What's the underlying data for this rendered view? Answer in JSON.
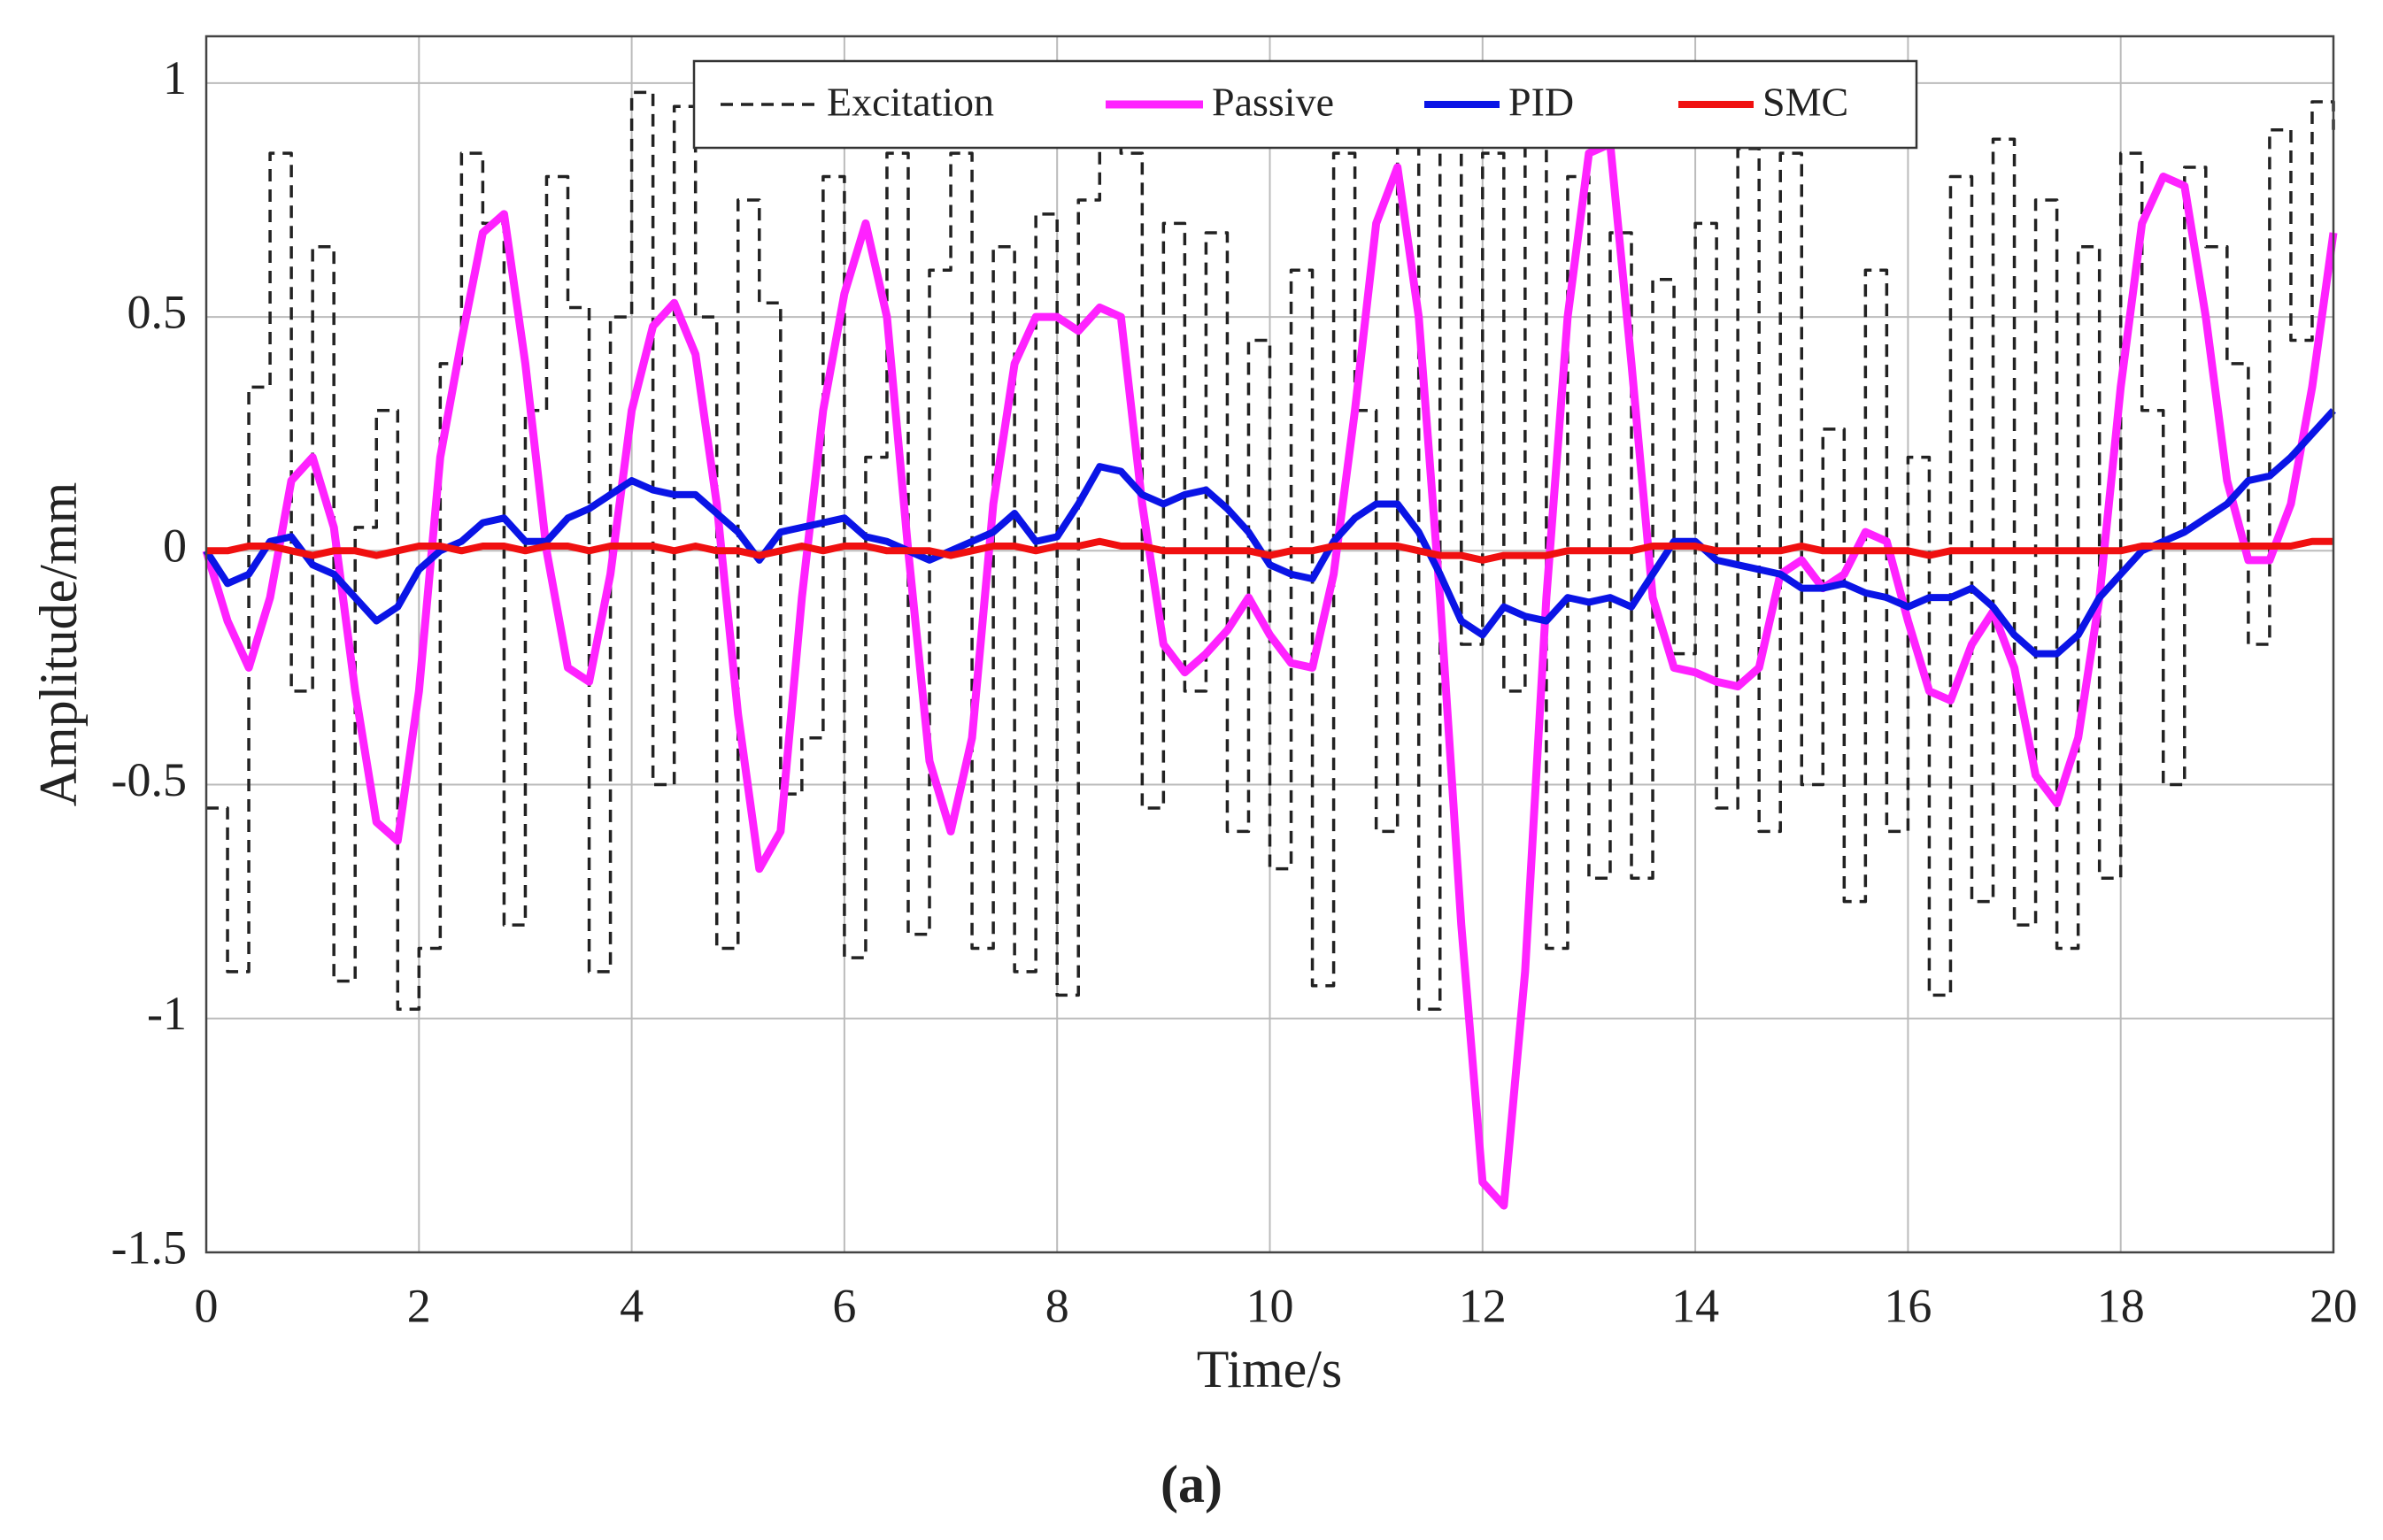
{
  "chart_data": {
    "type": "line",
    "xlabel": "Time/s",
    "ylabel": "Amplitude/mm",
    "caption": "(a)",
    "xlim": [
      0,
      20
    ],
    "ylim": [
      -1.5,
      1.1
    ],
    "xticks": [
      0,
      2,
      4,
      6,
      8,
      10,
      12,
      14,
      16,
      18,
      20
    ],
    "yticks": [
      -1.5,
      -1,
      -0.5,
      0,
      0.5,
      1
    ],
    "grid": true,
    "legend": "upper center",
    "x": [
      0,
      0.2,
      0.4,
      0.6,
      0.8,
      1,
      1.2,
      1.4,
      1.6,
      1.8,
      2,
      2.2,
      2.4,
      2.6,
      2.8,
      3,
      3.2,
      3.4,
      3.6,
      3.8,
      4,
      4.2,
      4.4,
      4.6,
      4.8,
      5,
      5.2,
      5.4,
      5.6,
      5.8,
      6,
      6.2,
      6.4,
      6.6,
      6.8,
      7,
      7.2,
      7.4,
      7.6,
      7.8,
      8,
      8.2,
      8.4,
      8.6,
      8.8,
      9,
      9.2,
      9.4,
      9.6,
      9.8,
      10,
      10.2,
      10.4,
      10.6,
      10.8,
      11,
      11.2,
      11.4,
      11.6,
      11.8,
      12,
      12.2,
      12.4,
      12.6,
      12.8,
      13,
      13.2,
      13.4,
      13.6,
      13.8,
      14,
      14.2,
      14.4,
      14.6,
      14.8,
      15,
      15.2,
      15.4,
      15.6,
      15.8,
      16,
      16.2,
      16.4,
      16.6,
      16.8,
      17,
      17.2,
      17.4,
      17.6,
      17.8,
      18,
      18.2,
      18.4,
      18.6,
      18.8,
      19,
      19.2,
      19.4,
      19.6,
      19.8,
      20
    ],
    "series": [
      {
        "name": "Excitation",
        "color": "#222222",
        "dash": true,
        "values": [
          -0.55,
          -0.9,
          0.35,
          0.85,
          -0.3,
          0.65,
          -0.92,
          0.05,
          0.3,
          -0.98,
          -0.85,
          0.4,
          0.85,
          0.7,
          -0.8,
          0.3,
          0.8,
          0.52,
          -0.9,
          0.5,
          0.98,
          -0.5,
          0.95,
          0.5,
          -0.85,
          0.75,
          0.53,
          -0.52,
          -0.4,
          0.8,
          -0.87,
          0.2,
          0.85,
          -0.82,
          0.6,
          0.85,
          -0.85,
          0.65,
          -0.9,
          0.72,
          -0.95,
          0.75,
          0.87,
          0.85,
          -0.55,
          0.7,
          -0.3,
          0.68,
          -0.6,
          0.45,
          -0.68,
          0.6,
          -0.93,
          0.85,
          0.3,
          -0.6,
          0.88,
          -0.98,
          0.9,
          -0.2,
          0.85,
          -0.3,
          0.87,
          -0.85,
          0.8,
          -0.7,
          0.68,
          -0.7,
          0.58,
          -0.22,
          0.7,
          -0.55,
          0.86,
          -0.6,
          0.85,
          -0.5,
          0.26,
          -0.75,
          0.6,
          -0.6,
          0.2,
          -0.95,
          0.8,
          -0.75,
          0.88,
          -0.8,
          0.75,
          -0.85,
          0.65,
          -0.7,
          0.85,
          0.3,
          -0.5,
          0.82,
          0.65,
          0.4,
          -0.2,
          0.9,
          0.45,
          0.96,
          0.9
        ]
      },
      {
        "name": "Passive",
        "color": "#ff22ff",
        "values": [
          0,
          -0.15,
          -0.25,
          -0.1,
          0.15,
          0.2,
          0.05,
          -0.3,
          -0.58,
          -0.62,
          -0.3,
          0.2,
          0.45,
          0.68,
          0.72,
          0.4,
          0,
          -0.25,
          -0.28,
          -0.05,
          0.3,
          0.48,
          0.53,
          0.42,
          0.1,
          -0.35,
          -0.68,
          -0.6,
          -0.1,
          0.3,
          0.55,
          0.7,
          0.5,
          0,
          -0.45,
          -0.6,
          -0.4,
          0.1,
          0.4,
          0.5,
          0.5,
          0.47,
          0.52,
          0.5,
          0.1,
          -0.2,
          -0.26,
          -0.22,
          -0.17,
          -0.1,
          -0.18,
          -0.24,
          -0.25,
          -0.05,
          0.3,
          0.7,
          0.82,
          0.5,
          -0.1,
          -0.8,
          -1.35,
          -1.4,
          -0.9,
          -0.1,
          0.5,
          0.85,
          0.87,
          0.4,
          -0.1,
          -0.25,
          -0.26,
          -0.28,
          -0.29,
          -0.25,
          -0.05,
          -0.02,
          -0.08,
          -0.05,
          0.04,
          0.02,
          -0.15,
          -0.3,
          -0.32,
          -0.2,
          -0.13,
          -0.25,
          -0.48,
          -0.54,
          -0.4,
          -0.1,
          0.35,
          0.7,
          0.8,
          0.78,
          0.5,
          0.15,
          -0.02,
          -0.02,
          0.1,
          0.35,
          0.68
        ]
      },
      {
        "name": "PID",
        "color": "#0a14e6",
        "values": [
          0,
          -0.07,
          -0.05,
          0.02,
          0.03,
          -0.03,
          -0.05,
          -0.1,
          -0.15,
          -0.12,
          -0.04,
          0,
          0.02,
          0.06,
          0.07,
          0.02,
          0.02,
          0.07,
          0.09,
          0.12,
          0.15,
          0.13,
          0.12,
          0.12,
          0.08,
          0.04,
          -0.02,
          0.04,
          0.05,
          0.06,
          0.07,
          0.03,
          0.02,
          0,
          -0.02,
          0,
          0.02,
          0.04,
          0.08,
          0.02,
          0.03,
          0.1,
          0.18,
          0.17,
          0.12,
          0.1,
          0.12,
          0.13,
          0.09,
          0.04,
          -0.03,
          -0.05,
          -0.06,
          0.02,
          0.07,
          0.1,
          0.1,
          0.04,
          -0.05,
          -0.15,
          -0.18,
          -0.12,
          -0.14,
          -0.15,
          -0.1,
          -0.11,
          -0.1,
          -0.12,
          -0.05,
          0.02,
          0.02,
          -0.02,
          -0.03,
          -0.04,
          -0.05,
          -0.08,
          -0.08,
          -0.07,
          -0.09,
          -0.1,
          -0.12,
          -0.1,
          -0.1,
          -0.08,
          -0.12,
          -0.18,
          -0.22,
          -0.22,
          -0.18,
          -0.1,
          -0.05,
          0,
          0.02,
          0.04,
          0.07,
          0.1,
          0.15,
          0.16,
          0.2,
          0.25,
          0.3
        ]
      },
      {
        "name": "SMC",
        "color": "#f01010",
        "values": [
          0,
          0,
          0.01,
          0.01,
          0,
          -0.01,
          0,
          0,
          -0.01,
          0,
          0.01,
          0.01,
          0,
          0.01,
          0.01,
          0,
          0.01,
          0.01,
          0,
          0.01,
          0.01,
          0.01,
          0,
          0.01,
          0,
          0,
          -0.01,
          0,
          0.01,
          0,
          0.01,
          0.01,
          0,
          0,
          0,
          -0.01,
          0,
          0.01,
          0.01,
          0,
          0.01,
          0.01,
          0.02,
          0.01,
          0.01,
          0,
          0,
          0,
          0,
          0,
          -0.01,
          0,
          0,
          0.01,
          0.01,
          0.01,
          0.01,
          0,
          -0.01,
          -0.01,
          -0.02,
          -0.01,
          -0.01,
          -0.01,
          0,
          0,
          0,
          0,
          0.01,
          0.01,
          0.01,
          0,
          0,
          0,
          0,
          0.01,
          0,
          0,
          0,
          0,
          0,
          -0.01,
          0,
          0,
          0,
          0,
          0,
          0,
          0,
          0,
          0,
          0.01,
          0.01,
          0.01,
          0.01,
          0.01,
          0.01,
          0.01,
          0.01,
          0.02,
          0.02
        ]
      }
    ]
  }
}
